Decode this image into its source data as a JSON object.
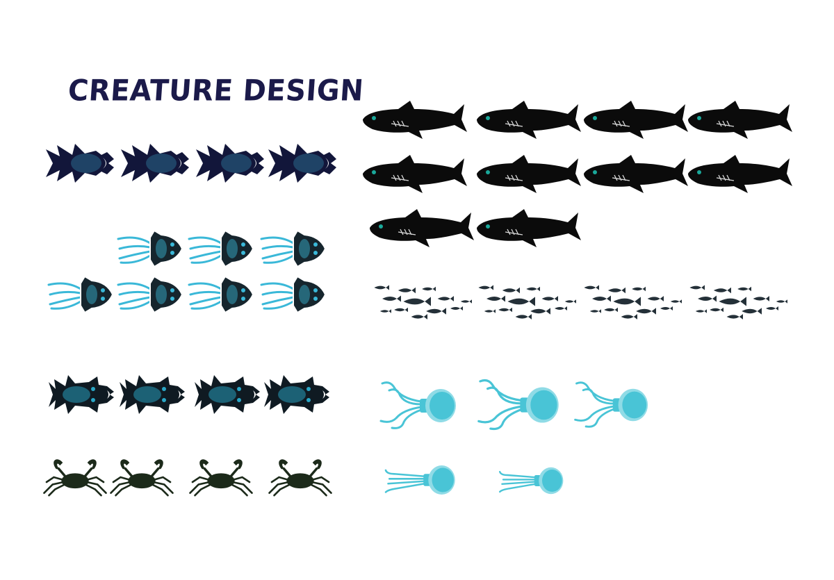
{
  "title": "CREATURE DESIGN",
  "colors": {
    "title": "#1b1a4a",
    "shark": "#0b0b0b",
    "shark_eye": "#1aa89a",
    "angler": "#12163a",
    "angler_glow": "#2a6a8a",
    "squid": "#16252d",
    "squid_glow": "#3ab8d8",
    "beetle": "#0f1a22",
    "beetle_glow": "#2aa7c7",
    "crab": "#1c2a1a",
    "school": "#243038",
    "jellyfish": "#49c4d6",
    "jellyfish_light": "#8fdbe6"
  },
  "groups": [
    {
      "creature": "anglerfish",
      "frames": 4
    },
    {
      "creature": "squid",
      "frames": 7
    },
    {
      "creature": "beetle",
      "frames": 4
    },
    {
      "creature": "crab",
      "frames": 4
    },
    {
      "creature": "shark",
      "frames": 10
    },
    {
      "creature": "fish-school",
      "frames": 4
    },
    {
      "creature": "jellyfish",
      "frames": 5
    }
  ]
}
